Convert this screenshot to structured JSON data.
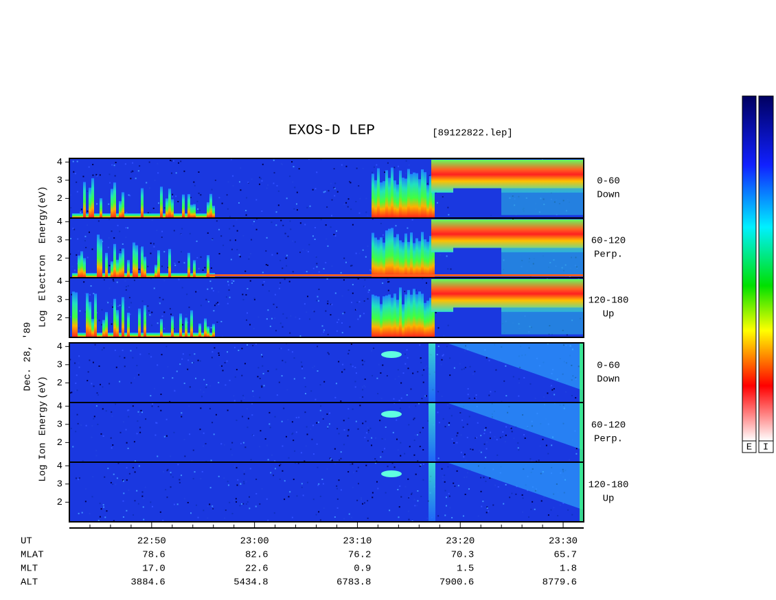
{
  "chart_data": {
    "type": "spectrogram",
    "title": "EXOS-D LEP",
    "file_label": "[89122822.lep]",
    "date_label": "Dec. 28, '89",
    "groups": [
      {
        "ylabel": [
          "Log",
          "Electron",
          "Energy",
          "(eV)"
        ],
        "panels": [
          {
            "angle": "0-60",
            "direction": "Down"
          },
          {
            "angle": "60-120",
            "direction": "Perp."
          },
          {
            "angle": "120-180",
            "direction": "Up"
          }
        ]
      },
      {
        "ylabel": [
          "Log",
          "Ion",
          "Energy",
          "(eV)"
        ],
        "panels": [
          {
            "angle": "0-60",
            "direction": "Down"
          },
          {
            "angle": "60-120",
            "direction": "Perp."
          },
          {
            "angle": "120-180",
            "direction": "Up"
          }
        ]
      }
    ],
    "ylim": [
      0.92,
      4.2
    ],
    "yticks": [
      2,
      3,
      4
    ],
    "xlim": [
      1362,
      1412
    ],
    "xticks": [
      {
        "value": 1370,
        "label": "22:50"
      },
      {
        "value": 1380,
        "label": "23:00"
      },
      {
        "value": 1390,
        "label": "23:10"
      },
      {
        "value": 1400,
        "label": "23:20"
      },
      {
        "value": 1410,
        "label": "23:30"
      }
    ],
    "xminorticks": [
      1364,
      1366,
      1368,
      1372,
      1374,
      1376,
      1378,
      1382,
      1384,
      1386,
      1388,
      1392,
      1394,
      1396,
      1398,
      1402,
      1404,
      1406,
      1408
    ],
    "orbit": [
      {
        "name": "UT"
      },
      {
        "name": "MLAT",
        "values": [
          "78.6",
          "82.6",
          "76.2",
          "70.3",
          "65.7"
        ]
      },
      {
        "name": "MLT",
        "values": [
          "17.0",
          "22.6",
          "0.9",
          "1.5",
          "1.8"
        ]
      },
      {
        "name": "ALT",
        "values": [
          "3884.6",
          "5434.8",
          "6783.8",
          "7900.6",
          "8779.6"
        ]
      }
    ],
    "colorbar_labels": [
      "E",
      "I"
    ]
  }
}
